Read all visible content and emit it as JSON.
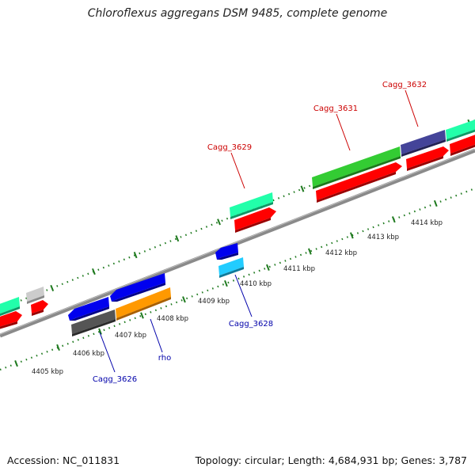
{
  "title": "Chloroflexus aggregans DSM 9485, complete genome",
  "footer": {
    "accession": "Accession: NC_011831",
    "summary": "Topology: circular; Length: 4,684,931 bp; Genes: 3,787"
  },
  "colors": {
    "backbone": "#8a8a8a",
    "tick": "#1f7a1f",
    "label_top": "#cc0000",
    "label_bottom": "#0000aa",
    "red_feature": "#ff0000",
    "green_feature": "#33cc33",
    "aqua_feature": "#22ffaa",
    "purple_feature": "#444499",
    "blue_feature": "#0000ee",
    "cyan_feature": "#22ccff",
    "orange_feature": "#ff9900",
    "grey_feature": "#555555",
    "light_grey_feature": "#cccccc"
  },
  "scale_labels": [
    "4405 kbp",
    "4406 kbp",
    "4407 kbp",
    "4408 kbp",
    "4409 kbp",
    "4410 kbp",
    "4411 kbp",
    "4412 kbp",
    "4413 kbp",
    "4414 kbp"
  ],
  "gene_labels_top": [
    "Cagg_3629",
    "Cagg_3631",
    "Cagg_3632"
  ],
  "gene_labels_bottom": [
    "Cagg_3626",
    "rho",
    "Cagg_3628"
  ]
}
